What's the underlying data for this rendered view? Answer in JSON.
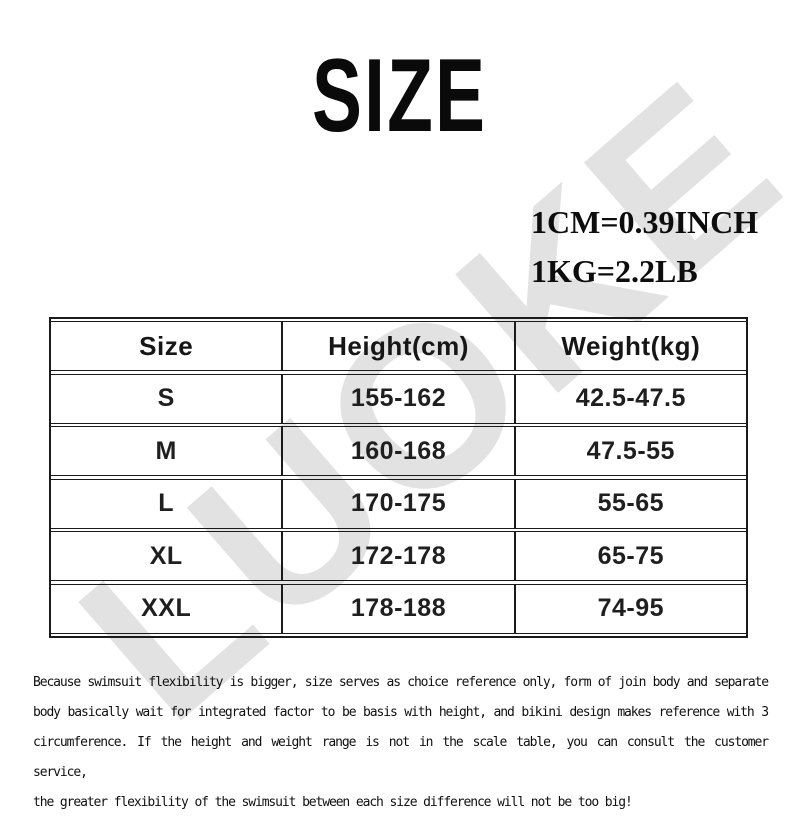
{
  "image": {
    "background": "#ffffff"
  },
  "title": "SIZE",
  "watermark": "LUOKE",
  "unit_conversion": {
    "cm_to_inch": "1CM=0.39INCH",
    "kg_to_lb": "1KG=2.2LB"
  },
  "size_chart": {
    "columns": [
      "Size",
      "Height(cm)",
      "Weight(kg)"
    ],
    "rows": [
      [
        "S",
        "155-162",
        "42.5-47.5"
      ],
      [
        "M",
        "160-168",
        "47.5-55"
      ],
      [
        "L",
        "170-175",
        "55-65"
      ],
      [
        "XL",
        "172-178",
        "65-75"
      ],
      [
        "XXL",
        "178-188",
        "74-95"
      ]
    ]
  },
  "note_lines": [
    "Because swimsuit flexibility is bigger, size serves as choice reference only, form of join body and separate",
    "body basically wait for integrated factor to be basis with height, and bikini design makes reference with 3",
    "circumference. If the height and weight range is not in the scale table, you can consult the customer service,",
    "the greater flexibility of the swimsuit between each size difference will not be too big!"
  ],
  "colors": {
    "text": "#111111",
    "table_border": "#1a1a1a",
    "watermark": "#e2e2e2"
  }
}
